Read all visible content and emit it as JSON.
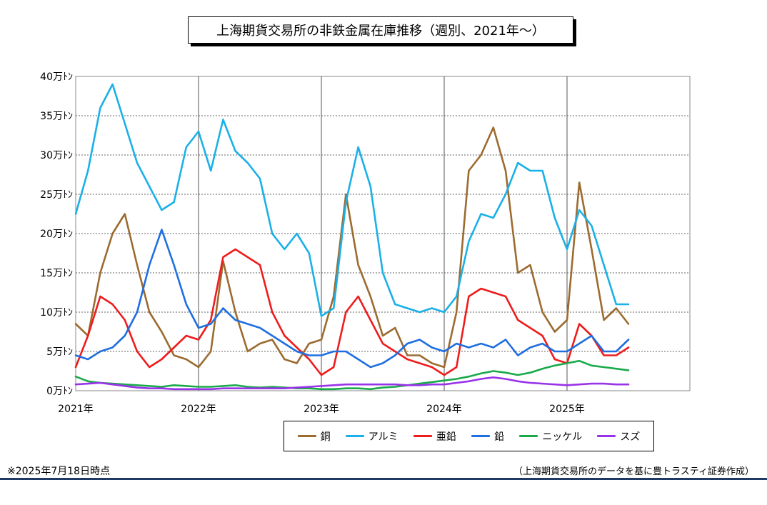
{
  "header": {
    "title": "上海期貨交易所の非鉄金属在庫推移（週別、2021年～）"
  },
  "footer": {
    "note": "※2025年7月18日時点",
    "source": "（上海期貨交易所のデータを基に豊トラスティ証券作成）"
  },
  "chart_data": {
    "type": "line",
    "title": "上海期貨交易所の非鉄金属在庫推移（週別、2021年～）",
    "xlabel": "",
    "ylabel": "",
    "x_tick_labels": [
      "2021年",
      "2022年",
      "2023年",
      "2024年",
      "2025年"
    ],
    "y_tick_labels": [
      "0万ﾄﾝ",
      "5万ﾄﾝ",
      "10万ﾄﾝ",
      "15万ﾄﾝ",
      "20万ﾄﾝ",
      "25万ﾄﾝ",
      "30万ﾄﾝ",
      "35万ﾄﾝ",
      "40万ﾄﾝ"
    ],
    "xlim": [
      2021.0,
      2026.0
    ],
    "ylim": [
      0,
      40
    ],
    "grid": true,
    "legend_position": "bottom",
    "x": [
      2021.0,
      2021.1,
      2021.2,
      2021.3,
      2021.4,
      2021.5,
      2021.6,
      2021.7,
      2021.8,
      2021.9,
      2022.0,
      2022.1,
      2022.2,
      2022.3,
      2022.4,
      2022.5,
      2022.6,
      2022.7,
      2022.8,
      2022.9,
      2023.0,
      2023.1,
      2023.2,
      2023.3,
      2023.4,
      2023.5,
      2023.6,
      2023.7,
      2023.8,
      2023.9,
      2024.0,
      2024.1,
      2024.2,
      2024.3,
      2024.4,
      2024.5,
      2024.6,
      2024.7,
      2024.8,
      2024.9,
      2025.0,
      2025.1,
      2025.2,
      2025.3,
      2025.4,
      2025.5
    ],
    "series": [
      {
        "name": "銅",
        "color": "#9c6b30",
        "values": [
          8.5,
          7.0,
          15.0,
          20.0,
          22.5,
          16.0,
          10.0,
          7.5,
          4.5,
          4.0,
          3.0,
          5.0,
          16.5,
          10.0,
          5.0,
          6.0,
          6.5,
          4.0,
          3.5,
          6.0,
          6.5,
          12.0,
          25.0,
          16.0,
          12.0,
          7.0,
          8.0,
          4.5,
          4.5,
          3.5,
          3.0,
          10.0,
          28.0,
          30.0,
          33.5,
          28.0,
          15.0,
          16.0,
          10.0,
          7.5,
          9.0,
          26.5,
          18.0,
          9.0,
          10.5,
          8.5
        ]
      },
      {
        "name": "アルミ",
        "color": "#1ab0e8",
        "values": [
          22.5,
          28.0,
          36.0,
          39.0,
          34.0,
          29.0,
          26.0,
          23.0,
          24.0,
          31.0,
          33.0,
          28.0,
          34.5,
          30.5,
          29.0,
          27.0,
          20.0,
          18.0,
          20.0,
          17.5,
          9.5,
          10.5,
          24.0,
          31.0,
          26.0,
          15.0,
          11.0,
          10.5,
          10.0,
          10.5,
          10.0,
          12.0,
          19.0,
          22.5,
          22.0,
          25.0,
          29.0,
          28.0,
          28.0,
          22.0,
          18.0,
          23.0,
          21.0,
          16.0,
          11.0,
          11.0
        ]
      },
      {
        "name": "亜鉛",
        "color": "#ee1c1c",
        "values": [
          3.0,
          7.0,
          12.0,
          11.0,
          9.0,
          5.0,
          3.0,
          4.0,
          5.5,
          7.0,
          6.5,
          9.0,
          17.0,
          18.0,
          17.0,
          16.0,
          10.0,
          7.0,
          5.5,
          4.0,
          2.0,
          3.0,
          10.0,
          12.0,
          9.0,
          6.0,
          5.0,
          4.0,
          3.5,
          3.0,
          2.0,
          3.0,
          12.0,
          13.0,
          12.5,
          12.0,
          9.0,
          8.0,
          7.0,
          4.0,
          3.5,
          8.5,
          7.0,
          4.5,
          4.5,
          5.5
        ]
      },
      {
        "name": "鉛",
        "color": "#1f6fe0",
        "values": [
          4.5,
          4.0,
          5.0,
          5.5,
          7.0,
          10.0,
          16.0,
          20.5,
          16.0,
          11.0,
          8.0,
          8.5,
          10.5,
          9.0,
          8.5,
          8.0,
          7.0,
          6.0,
          5.0,
          4.5,
          4.5,
          5.0,
          5.0,
          4.0,
          3.0,
          3.5,
          4.5,
          6.0,
          6.5,
          5.5,
          5.0,
          6.0,
          5.5,
          6.0,
          5.5,
          6.5,
          4.5,
          5.5,
          6.0,
          5.0,
          5.0,
          6.0,
          7.0,
          5.0,
          5.0,
          6.5
        ]
      },
      {
        "name": "ニッケル",
        "color": "#1aaa4a",
        "values": [
          1.8,
          1.2,
          1.0,
          0.9,
          0.8,
          0.7,
          0.6,
          0.5,
          0.7,
          0.6,
          0.5,
          0.5,
          0.6,
          0.7,
          0.5,
          0.4,
          0.5,
          0.4,
          0.3,
          0.3,
          0.2,
          0.2,
          0.3,
          0.3,
          0.2,
          0.4,
          0.5,
          0.7,
          0.9,
          1.1,
          1.3,
          1.5,
          1.8,
          2.2,
          2.5,
          2.3,
          2.0,
          2.3,
          2.8,
          3.2,
          3.5,
          3.8,
          3.2,
          3.0,
          2.8,
          2.6
        ]
      },
      {
        "name": "スズ",
        "color": "#9933e8",
        "values": [
          0.8,
          0.9,
          1.0,
          0.8,
          0.6,
          0.4,
          0.3,
          0.3,
          0.2,
          0.2,
          0.2,
          0.2,
          0.3,
          0.3,
          0.3,
          0.3,
          0.3,
          0.3,
          0.4,
          0.5,
          0.6,
          0.7,
          0.8,
          0.8,
          0.8,
          0.8,
          0.8,
          0.7,
          0.7,
          0.8,
          0.8,
          1.0,
          1.2,
          1.5,
          1.7,
          1.5,
          1.2,
          1.0,
          0.9,
          0.8,
          0.7,
          0.8,
          0.9,
          0.9,
          0.8,
          0.8
        ]
      }
    ]
  }
}
